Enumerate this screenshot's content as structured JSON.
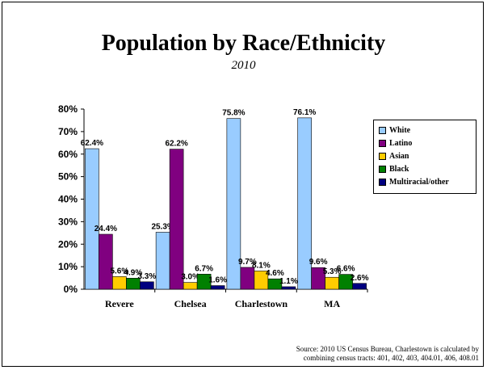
{
  "chart_data": {
    "type": "bar",
    "title": "Population by Race/Ethnicity",
    "subtitle": "2010",
    "categories": [
      "Revere",
      "Chelsea",
      "Charlestown",
      "MA"
    ],
    "series": [
      {
        "name": "White",
        "color": "#99ccff",
        "values": [
          62.4,
          25.3,
          75.8,
          76.1
        ],
        "labels": [
          "62.4%",
          "25.3%",
          "75.8%",
          "76.1%"
        ]
      },
      {
        "name": "Latino",
        "color": "#800080",
        "values": [
          24.4,
          62.2,
          9.7,
          9.6
        ],
        "labels": [
          "24.4%",
          "62.2%",
          "9.7%",
          "9.6%"
        ]
      },
      {
        "name": "Asian",
        "color": "#ffcc00",
        "values": [
          5.6,
          3.0,
          8.1,
          5.3
        ],
        "labels": [
          "5.6%",
          "3.0%",
          "8.1%",
          "5.3%"
        ]
      },
      {
        "name": "Black",
        "color": "#008000",
        "values": [
          4.9,
          6.7,
          4.6,
          6.6
        ],
        "labels": [
          "4.9%",
          "6.7%",
          "4.6%",
          "6.6%"
        ]
      },
      {
        "name": "Multiracial/other",
        "color": "#000080",
        "values": [
          3.3,
          1.6,
          1.1,
          2.6
        ],
        "labels": [
          "3.3%",
          "1.6%",
          "1.1%",
          "2.6%"
        ]
      }
    ],
    "yticks": [
      "0%",
      "10%",
      "20%",
      "30%",
      "40%",
      "50%",
      "60%",
      "70%",
      "80%"
    ],
    "ylim": [
      0,
      80
    ],
    "grid": false,
    "legend_position": "right"
  },
  "source": {
    "line1": "Source: 2010 US Census Bureau, Charlestown is calculated by",
    "line2": "combining census tracts: 401, 402, 403, 404.01, 406, 408.01"
  }
}
